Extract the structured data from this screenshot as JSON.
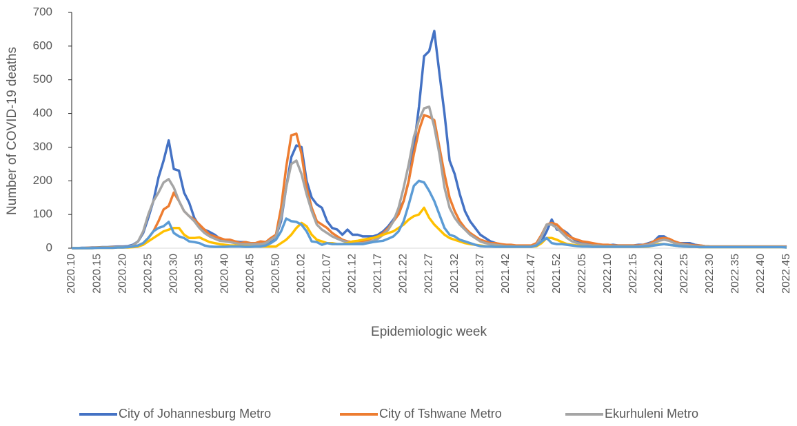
{
  "chart_data": {
    "type": "line",
    "ylabel": "Number of COVID-19 deaths",
    "xlabel": "Epidemiologic week",
    "categories": [
      "2020.10",
      null,
      null,
      null,
      null,
      "2020.15",
      null,
      null,
      null,
      null,
      "2020.20",
      null,
      null,
      null,
      null,
      "2020.25",
      null,
      null,
      null,
      null,
      "2020.30",
      null,
      null,
      null,
      null,
      "2020.35",
      null,
      null,
      null,
      null,
      "2020.40",
      null,
      null,
      null,
      null,
      "2020.45",
      null,
      null,
      null,
      null,
      "2020.50",
      null,
      null,
      null,
      null,
      "2021.02",
      null,
      null,
      null,
      null,
      "2021.07",
      null,
      null,
      null,
      null,
      "2021.12",
      null,
      null,
      null,
      null,
      "2021.17",
      null,
      null,
      null,
      null,
      "2021.22",
      null,
      null,
      null,
      null,
      "2021.27",
      null,
      null,
      null,
      null,
      "2021.32",
      null,
      null,
      null,
      null,
      "2021.37",
      null,
      null,
      null,
      null,
      "2021.42",
      null,
      null,
      null,
      null,
      "2021.47",
      null,
      null,
      null,
      null,
      "2021.52",
      null,
      null,
      null,
      null,
      "2022.05",
      null,
      null,
      null,
      null,
      "2022.10",
      null,
      null,
      null,
      null,
      "2022.15",
      null,
      null,
      null,
      null,
      "2022.20",
      null,
      null,
      null,
      null,
      "2022.25",
      null,
      null,
      null,
      null,
      "2022.30",
      null,
      null,
      null,
      null,
      "2022.35",
      null,
      null,
      null,
      null,
      "2022.40",
      null,
      null,
      null,
      null,
      "2022.45"
    ],
    "series": [
      {
        "name": "City of Johannesburg Metro",
        "color": "#4472c4",
        "values": [
          0,
          0,
          1,
          1,
          2,
          2,
          3,
          3,
          4,
          5,
          5,
          6,
          10,
          20,
          45,
          90,
          140,
          210,
          260,
          320,
          235,
          230,
          165,
          135,
          90,
          65,
          55,
          48,
          40,
          28,
          25,
          22,
          20,
          18,
          18,
          15,
          15,
          12,
          15,
          22,
          35,
          80,
          180,
          270,
          305,
          300,
          200,
          150,
          130,
          120,
          80,
          60,
          55,
          40,
          55,
          40,
          40,
          35,
          35,
          35,
          40,
          50,
          65,
          85,
          110,
          140,
          200,
          300,
          420,
          570,
          585,
          645,
          520,
          400,
          260,
          220,
          160,
          110,
          80,
          60,
          40,
          30,
          20,
          15,
          10,
          10,
          8,
          6,
          5,
          5,
          5,
          8,
          20,
          50,
          85,
          55,
          55,
          45,
          30,
          20,
          15,
          12,
          10,
          10,
          8,
          8,
          10,
          8,
          8,
          8,
          8,
          10,
          10,
          15,
          20,
          35,
          35,
          25,
          20,
          15,
          15,
          15,
          10,
          8,
          6,
          5,
          5,
          5,
          5,
          5,
          5,
          5,
          5,
          5,
          5,
          5,
          5,
          5,
          5,
          5,
          5
        ]
      },
      {
        "name": "City of Tshwane Metro",
        "color": "#ed7d31",
        "values": [
          0,
          0,
          0,
          1,
          1,
          2,
          2,
          2,
          3,
          3,
          3,
          4,
          5,
          8,
          15,
          30,
          50,
          80,
          115,
          125,
          165,
          140,
          110,
          95,
          85,
          70,
          55,
          40,
          35,
          30,
          25,
          25,
          20,
          15,
          18,
          15,
          15,
          20,
          18,
          30,
          40,
          120,
          240,
          335,
          340,
          280,
          180,
          120,
          80,
          70,
          60,
          45,
          35,
          25,
          20,
          18,
          18,
          20,
          25,
          30,
          35,
          45,
          60,
          80,
          100,
          140,
          200,
          280,
          350,
          395,
          390,
          380,
          300,
          220,
          150,
          110,
          80,
          60,
          45,
          35,
          25,
          20,
          15,
          15,
          12,
          10,
          10,
          8,
          8,
          8,
          8,
          15,
          40,
          70,
          75,
          70,
          55,
          40,
          30,
          25,
          20,
          18,
          15,
          12,
          10,
          10,
          8,
          8,
          8,
          8,
          8,
          8,
          10,
          12,
          20,
          28,
          30,
          28,
          20,
          15,
          12,
          10,
          8,
          8,
          6,
          5,
          5,
          5,
          5,
          5,
          5,
          5,
          5,
          5,
          5,
          5,
          5,
          5,
          5,
          5,
          4
        ]
      },
      {
        "name": "Ekurhuleni Metro",
        "color": "#a5a5a5",
        "values": [
          0,
          0,
          0,
          0,
          1,
          1,
          2,
          2,
          2,
          3,
          3,
          4,
          8,
          20,
          50,
          100,
          140,
          165,
          195,
          205,
          180,
          140,
          110,
          95,
          80,
          60,
          45,
          35,
          28,
          22,
          20,
          18,
          15,
          12,
          12,
          12,
          12,
          12,
          15,
          25,
          35,
          90,
          180,
          250,
          260,
          220,
          160,
          110,
          70,
          55,
          45,
          35,
          28,
          22,
          18,
          15,
          15,
          15,
          18,
          22,
          28,
          40,
          55,
          80,
          120,
          180,
          250,
          330,
          380,
          415,
          420,
          360,
          280,
          180,
          120,
          90,
          70,
          55,
          40,
          30,
          20,
          15,
          12,
          10,
          8,
          6,
          6,
          5,
          5,
          5,
          5,
          10,
          35,
          70,
          70,
          60,
          45,
          30,
          20,
          15,
          12,
          10,
          8,
          8,
          6,
          6,
          6,
          6,
          6,
          6,
          6,
          6,
          8,
          10,
          15,
          22,
          25,
          22,
          15,
          12,
          10,
          8,
          6,
          5,
          5,
          4,
          4,
          4,
          4,
          4,
          4,
          4,
          4,
          4,
          4,
          4,
          4,
          4,
          4,
          4,
          3
        ]
      },
      {
        "color": "#ffc000",
        "values": [
          0,
          0,
          0,
          0,
          0,
          1,
          1,
          1,
          1,
          2,
          2,
          2,
          3,
          5,
          10,
          20,
          30,
          40,
          50,
          55,
          60,
          60,
          40,
          30,
          30,
          32,
          25,
          18,
          15,
          12,
          10,
          8,
          8,
          6,
          6,
          5,
          5,
          5,
          5,
          5,
          5,
          15,
          25,
          40,
          60,
          75,
          65,
          40,
          25,
          20,
          15,
          15,
          12,
          12,
          15,
          20,
          22,
          25,
          28,
          30,
          35,
          40,
          45,
          50,
          60,
          70,
          85,
          95,
          100,
          120,
          90,
          70,
          55,
          40,
          30,
          25,
          20,
          15,
          12,
          10,
          8,
          6,
          5,
          5,
          4,
          4,
          4,
          4,
          4,
          4,
          4,
          6,
          15,
          30,
          30,
          25,
          18,
          12,
          10,
          8,
          6,
          5,
          5,
          4,
          4,
          4,
          4,
          4,
          4,
          4,
          4,
          4,
          4,
          5,
          8,
          12,
          12,
          10,
          8,
          6,
          5,
          4,
          4,
          3,
          3,
          3,
          3,
          3,
          3,
          3,
          3,
          3,
          3,
          3,
          3,
          3,
          3,
          3,
          3,
          3,
          2
        ]
      },
      {
        "color": "#5b9bd5",
        "values": [
          0,
          0,
          0,
          0,
          0,
          1,
          1,
          1,
          1,
          2,
          2,
          3,
          5,
          8,
          15,
          30,
          50,
          60,
          65,
          78,
          45,
          35,
          30,
          20,
          18,
          15,
          8,
          5,
          4,
          4,
          4,
          5,
          5,
          5,
          4,
          4,
          5,
          5,
          8,
          15,
          25,
          50,
          88,
          80,
          78,
          70,
          50,
          20,
          18,
          10,
          15,
          12,
          12,
          12,
          12,
          12,
          12,
          12,
          15,
          18,
          20,
          22,
          28,
          35,
          50,
          80,
          130,
          185,
          200,
          195,
          170,
          140,
          100,
          60,
          40,
          35,
          25,
          20,
          15,
          10,
          6,
          5,
          5,
          4,
          4,
          4,
          4,
          4,
          4,
          4,
          4,
          8,
          20,
          30,
          15,
          12,
          12,
          10,
          8,
          6,
          5,
          5,
          4,
          4,
          4,
          4,
          4,
          4,
          4,
          4,
          4,
          4,
          5,
          6,
          8,
          10,
          12,
          10,
          8,
          6,
          5,
          4,
          4,
          3,
          3,
          3,
          3,
          3,
          3,
          3,
          3,
          3,
          3,
          3,
          3,
          3,
          3,
          3,
          3,
          3,
          2
        ]
      }
    ],
    "ylim": [
      0,
      700
    ],
    "yticks": [
      0,
      100,
      200,
      300,
      400,
      500,
      600,
      700
    ]
  }
}
